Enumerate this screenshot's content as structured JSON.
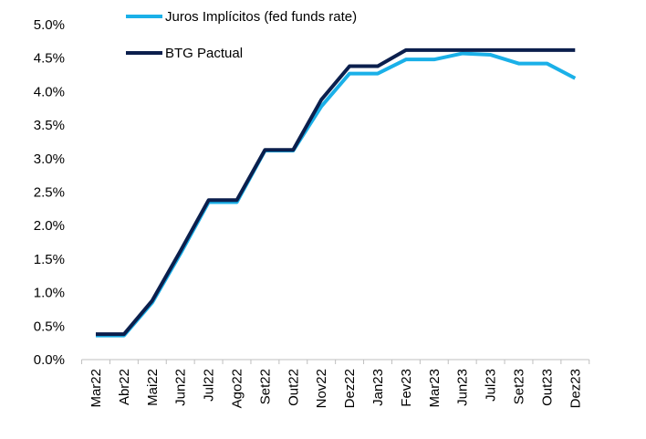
{
  "chart_data": {
    "type": "line",
    "categories": [
      "Mar22",
      "Abr22",
      "Mai22",
      "Jun22",
      "Jul22",
      "Ago22",
      "Set22",
      "Out22",
      "Nov22",
      "Dez22",
      "Jan23",
      "Fev23",
      "Mar23",
      "Jun23",
      "Jul23",
      "Set23",
      "Out23",
      "Dez23"
    ],
    "series": [
      {
        "name": "Juros Implícitos (fed funds rate)",
        "color": "#1ab0e8",
        "values": [
          0.36,
          0.36,
          0.85,
          1.58,
          2.35,
          2.35,
          3.12,
          3.12,
          3.78,
          4.27,
          4.27,
          4.48,
          4.48,
          4.57,
          4.55,
          4.42,
          4.42,
          4.2
        ]
      },
      {
        "name": "BTG Pactual",
        "color": "#0b1f4d",
        "values": [
          0.38,
          0.38,
          0.88,
          1.62,
          2.38,
          2.38,
          3.13,
          3.13,
          3.88,
          4.38,
          4.38,
          4.62,
          4.62,
          4.62,
          4.62,
          4.62,
          4.62,
          4.62
        ]
      }
    ],
    "y_ticks": [
      "0.0%",
      "0.5%",
      "1.0%",
      "1.5%",
      "2.0%",
      "2.5%",
      "3.0%",
      "3.5%",
      "4.0%",
      "4.5%",
      "5.0%"
    ],
    "ylim": [
      0,
      5
    ],
    "grid": false,
    "legend_position": "top-left"
  }
}
